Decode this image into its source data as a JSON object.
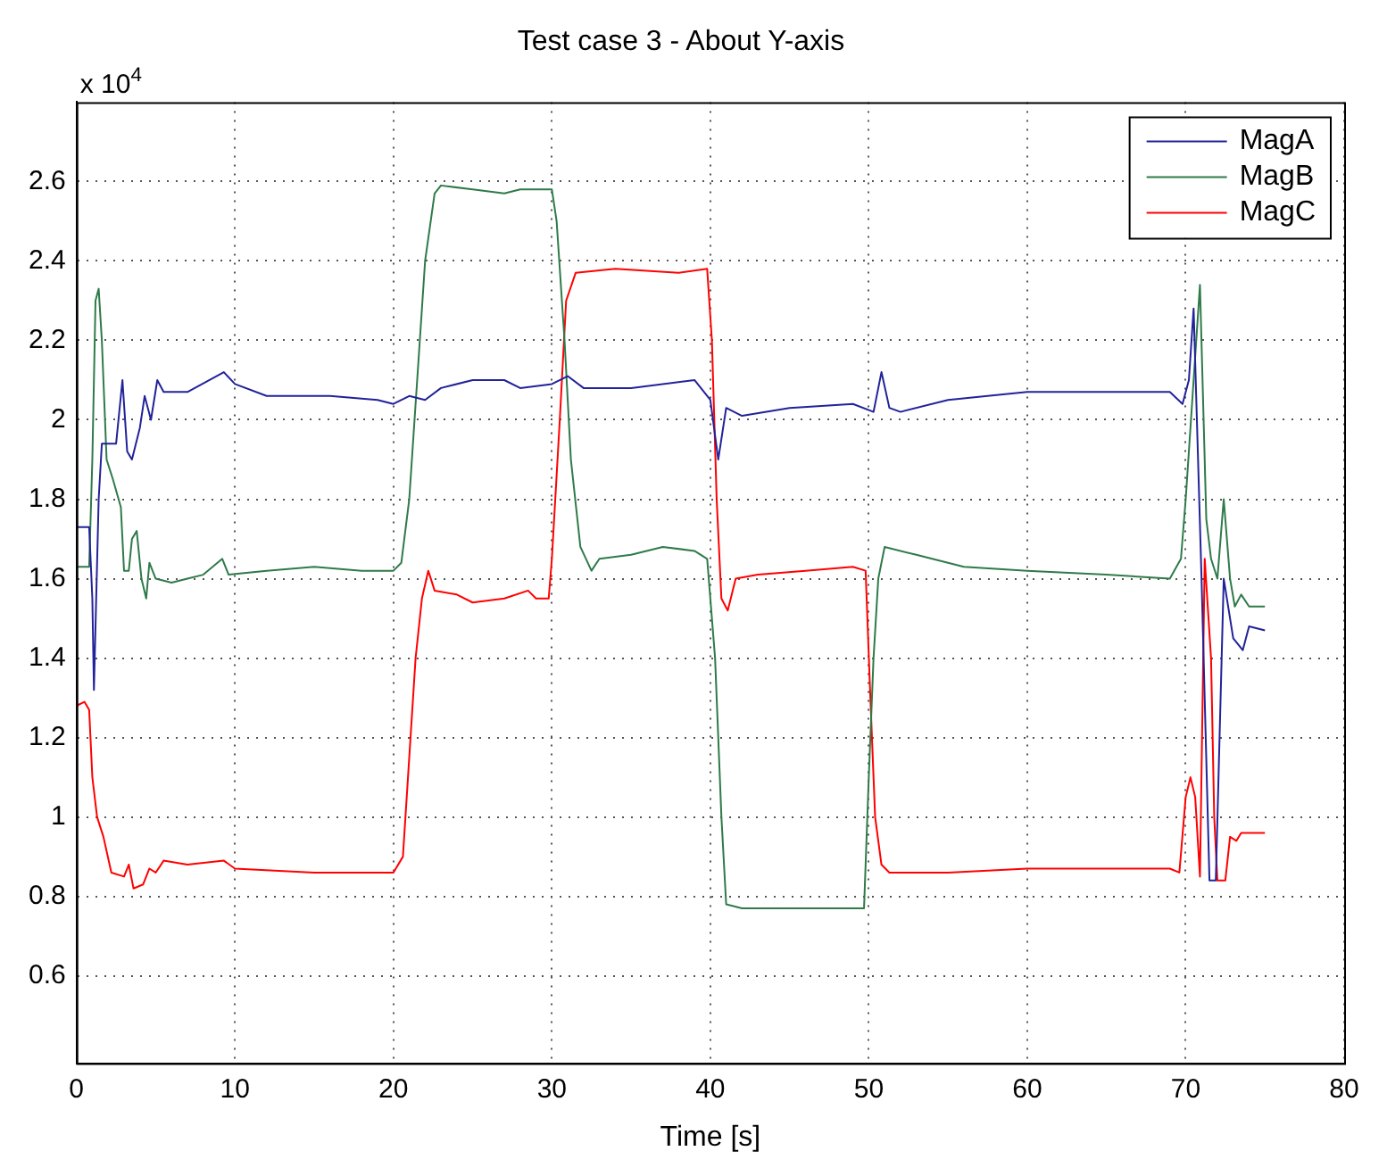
{
  "chart_data": {
    "type": "line",
    "title": "Test case 3 - About Y-axis",
    "xlabel": "Time [s]",
    "annotations": [
      "x 10$^{4}$"
    ],
    "xlim": [
      0,
      80
    ],
    "xticks": [
      0,
      10,
      20,
      30,
      40,
      50,
      60,
      70,
      80
    ],
    "ylim": [
      0.38,
      2.8
    ],
    "yticks": [
      0.6,
      0.8,
      1,
      1.2,
      1.4,
      1.6,
      1.8,
      2,
      2.2,
      2.4,
      2.6
    ],
    "grid": true,
    "legend": "top right",
    "marker": "none",
    "line_style": "solid",
    "series": [
      {
        "name": "MagA",
        "color": "#22229a",
        "x": [
          0,
          0.8,
          1.0,
          1.1,
          1.4,
          1.6,
          2.5,
          2.9,
          3.2,
          3.5,
          4.0,
          4.3,
          4.7,
          5.1,
          5.5,
          7,
          9.3,
          10,
          12,
          16,
          19,
          20,
          21,
          22,
          23,
          25,
          27,
          28,
          30,
          31,
          32,
          35,
          39,
          40,
          40.5,
          41,
          42,
          45,
          49,
          50.3,
          50.8,
          51.3,
          52,
          55,
          60,
          69,
          69.8,
          70.2,
          70.5,
          71.0,
          71.5,
          71.9,
          72.4,
          73.0,
          73.6,
          74,
          75
        ],
        "values": [
          1.73,
          1.73,
          1.55,
          1.32,
          1.8,
          1.94,
          1.94,
          2.1,
          1.92,
          1.9,
          1.98,
          2.06,
          2.0,
          2.1,
          2.07,
          2.07,
          2.12,
          2.09,
          2.06,
          2.06,
          2.05,
          2.04,
          2.06,
          2.05,
          2.08,
          2.1,
          2.1,
          2.08,
          2.09,
          2.11,
          2.08,
          2.08,
          2.1,
          2.05,
          1.9,
          2.03,
          2.01,
          2.03,
          2.04,
          2.02,
          2.12,
          2.03,
          2.02,
          2.05,
          2.07,
          2.07,
          2.04,
          2.1,
          2.28,
          1.6,
          0.84,
          0.84,
          1.6,
          1.45,
          1.42,
          1.48,
          1.47
        ]
      },
      {
        "name": "MagB",
        "color": "#2f7a4a",
        "x": [
          0,
          0.8,
          1.0,
          1.2,
          1.4,
          1.6,
          1.9,
          2.3,
          2.8,
          3.0,
          3.3,
          3.5,
          3.8,
          4.1,
          4.4,
          4.6,
          5,
          6,
          7,
          8,
          9.2,
          9.6,
          12,
          15,
          18,
          20,
          20.5,
          21,
          21.5,
          22,
          22.6,
          23,
          25,
          27,
          28,
          30,
          30.3,
          30.8,
          31.2,
          31.8,
          32.5,
          33,
          35,
          37,
          39,
          39.8,
          40.3,
          40.7,
          41,
          42,
          45,
          49.7,
          50,
          50.3,
          50.6,
          51,
          53,
          56,
          60,
          65,
          69,
          69.7,
          70,
          70.5,
          70.9,
          71.3,
          71.6,
          72.0,
          72.4,
          72.8,
          73.1,
          73.5,
          74,
          75
        ],
        "values": [
          1.63,
          1.63,
          1.9,
          2.3,
          2.33,
          2.2,
          1.9,
          1.85,
          1.78,
          1.62,
          1.62,
          1.7,
          1.72,
          1.6,
          1.55,
          1.64,
          1.6,
          1.59,
          1.6,
          1.61,
          1.65,
          1.61,
          1.62,
          1.63,
          1.62,
          1.62,
          1.64,
          1.8,
          2.1,
          2.4,
          2.57,
          2.59,
          2.58,
          2.57,
          2.58,
          2.58,
          2.5,
          2.2,
          1.9,
          1.68,
          1.62,
          1.65,
          1.66,
          1.68,
          1.67,
          1.65,
          1.4,
          1.0,
          0.78,
          0.77,
          0.77,
          0.77,
          1.1,
          1.4,
          1.6,
          1.68,
          1.66,
          1.63,
          1.62,
          1.61,
          1.6,
          1.65,
          1.8,
          2.1,
          2.34,
          1.75,
          1.65,
          1.6,
          1.8,
          1.6,
          1.53,
          1.56,
          1.53,
          1.53
        ]
      },
      {
        "name": "MagC",
        "color": "#ff0000",
        "x": [
          0,
          0.5,
          0.8,
          1.0,
          1.3,
          1.7,
          2.2,
          3,
          3.3,
          3.6,
          4.2,
          4.6,
          5,
          5.5,
          7,
          9.3,
          10,
          15,
          20,
          20.6,
          21,
          21.4,
          21.8,
          22.2,
          22.6,
          24,
          25,
          27,
          28.5,
          29,
          29.8,
          30,
          30.5,
          30.9,
          31.5,
          34,
          38,
          39.8,
          40.1,
          40.4,
          40.7,
          41.1,
          41.6,
          43,
          46,
          49,
          49.8,
          50.1,
          50.4,
          50.8,
          51.3,
          55,
          60,
          69,
          69.6,
          70,
          70.3,
          70.6,
          70.9,
          71.2,
          71.6,
          71.8,
          72.0,
          72.5,
          72.8,
          73.2,
          73.5,
          75
        ],
        "values": [
          1.28,
          1.29,
          1.27,
          1.1,
          1.0,
          0.95,
          0.86,
          0.85,
          0.88,
          0.82,
          0.83,
          0.87,
          0.86,
          0.89,
          0.88,
          0.89,
          0.87,
          0.86,
          0.86,
          0.9,
          1.15,
          1.4,
          1.55,
          1.62,
          1.57,
          1.56,
          1.54,
          1.55,
          1.57,
          1.55,
          1.55,
          1.65,
          2.0,
          2.3,
          2.37,
          2.38,
          2.37,
          2.38,
          2.2,
          1.8,
          1.55,
          1.52,
          1.6,
          1.61,
          1.62,
          1.63,
          1.62,
          1.3,
          1.0,
          0.88,
          0.86,
          0.86,
          0.87,
          0.87,
          0.86,
          1.05,
          1.1,
          1.05,
          0.85,
          1.65,
          1.4,
          1.0,
          0.84,
          0.84,
          0.95,
          0.94,
          0.96,
          0.96
        ]
      }
    ]
  }
}
